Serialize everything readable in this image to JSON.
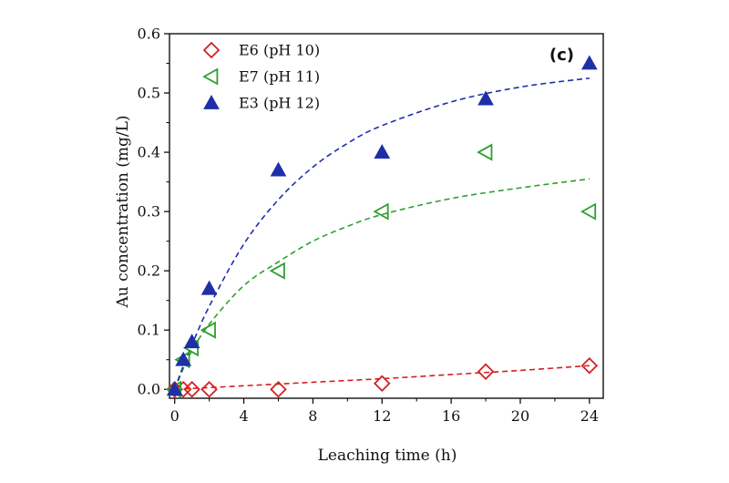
{
  "chart_data": {
    "type": "scatter",
    "panel_label": "(c)",
    "xlabel": "Leaching time (h)",
    "ylabel": "Au concentration (mg/L)",
    "xlim": [
      -0.3,
      24.8
    ],
    "ylim": [
      -0.015,
      0.6
    ],
    "xticks": [
      0,
      4,
      8,
      12,
      16,
      20,
      24
    ],
    "xtick_labels": [
      "0",
      "4",
      "8",
      "12",
      "16",
      "20",
      "24"
    ],
    "yticks": [
      0.0,
      0.1,
      0.2,
      0.3,
      0.4,
      0.5,
      0.6
    ],
    "ytick_labels": [
      "0.0",
      "0.1",
      "0.2",
      "0.3",
      "0.4",
      "0.5",
      "0.6"
    ],
    "grid": false,
    "legend_position": "top-left",
    "series": [
      {
        "name": "E6 (pH 10)",
        "marker": "diamond-open",
        "color": "#d42020",
        "x": [
          0,
          0.5,
          1,
          2,
          6,
          12,
          18,
          24
        ],
        "y": [
          0.0,
          0.0,
          0.0,
          0.0,
          0.0,
          0.01,
          0.03,
          0.04
        ],
        "fit": [
          [
            0,
            0.0
          ],
          [
            4,
            0.006
          ],
          [
            8,
            0.012
          ],
          [
            12,
            0.018
          ],
          [
            16,
            0.025
          ],
          [
            20,
            0.032
          ],
          [
            24,
            0.04
          ]
        ]
      },
      {
        "name": "E7 (pH 11)",
        "marker": "triangle-left-open",
        "color": "#2ca02c",
        "x": [
          0,
          0.5,
          1,
          2,
          6,
          12,
          18,
          24
        ],
        "y": [
          0.0,
          0.05,
          0.07,
          0.1,
          0.2,
          0.3,
          0.4,
          0.3
        ],
        "fit": [
          [
            0,
            0.0
          ],
          [
            0.5,
            0.035
          ],
          [
            1,
            0.065
          ],
          [
            2,
            0.11
          ],
          [
            4,
            0.175
          ],
          [
            6,
            0.215
          ],
          [
            8,
            0.25
          ],
          [
            10,
            0.275
          ],
          [
            12,
            0.295
          ],
          [
            16,
            0.322
          ],
          [
            20,
            0.34
          ],
          [
            24,
            0.355
          ]
        ]
      },
      {
        "name": "E3 (pH 12)",
        "marker": "triangle-up-filled",
        "color": "#1f2fa8",
        "x": [
          0,
          0.5,
          1,
          2,
          6,
          12,
          18,
          24
        ],
        "y": [
          0.0,
          0.05,
          0.08,
          0.17,
          0.37,
          0.4,
          0.49,
          0.55
        ],
        "fit": [
          [
            0,
            0.0
          ],
          [
            0.5,
            0.04
          ],
          [
            1,
            0.075
          ],
          [
            2,
            0.14
          ],
          [
            4,
            0.245
          ],
          [
            6,
            0.32
          ],
          [
            8,
            0.375
          ],
          [
            10,
            0.415
          ],
          [
            12,
            0.445
          ],
          [
            16,
            0.485
          ],
          [
            20,
            0.51
          ],
          [
            24,
            0.525
          ]
        ]
      }
    ]
  }
}
